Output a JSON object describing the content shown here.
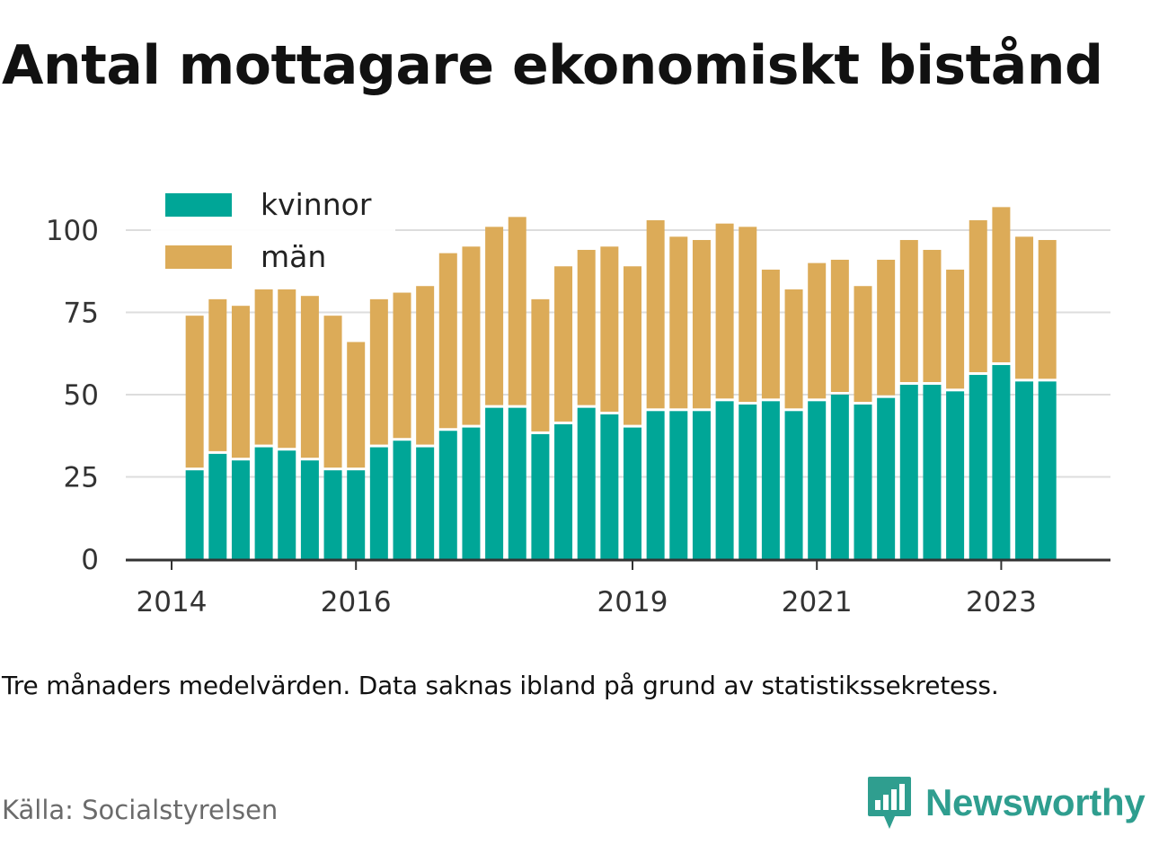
{
  "title": "Antal mottagare ekonomiskt bistånd",
  "note": "Tre månaders medelvärden. Data saknas ibland på grund av statistikssekretess.",
  "source": "Källa: Socialstyrelsen",
  "brand": {
    "name": "Newsworthy",
    "icon": "newsworthy-chart-bubble-icon",
    "color": "#2f9e8f"
  },
  "colors": {
    "kvinnor": "#00a697",
    "man": "#dcab58",
    "grid": "#dddddd",
    "axis": "#333333"
  },
  "chart_data": {
    "type": "bar",
    "stacked": true,
    "grid": true,
    "legend_position": "top-left",
    "ylim": [
      0,
      110
    ],
    "y_ticks": [
      0,
      25,
      50,
      75,
      100
    ],
    "xlim": [
      2014.0,
      2024.0
    ],
    "x_ticks": [
      {
        "label": "2014",
        "year": 2014.0
      },
      {
        "label": "2016",
        "year": 2016.0
      },
      {
        "label": "2019",
        "year": 2019.0
      },
      {
        "label": "2021",
        "year": 2021.0
      },
      {
        "label": "2023",
        "year": 2023.0
      }
    ],
    "x_periods": [
      2014.25,
      2014.5,
      2014.75,
      2015.0,
      2015.25,
      2015.5,
      2015.75,
      2016.0,
      2016.25,
      2016.5,
      2016.75,
      2017.0,
      2017.25,
      2017.5,
      2017.75,
      2018.0,
      2018.25,
      2018.5,
      2018.75,
      2019.0,
      2019.25,
      2019.5,
      2019.75,
      2020.0,
      2020.25,
      2020.5,
      2020.75,
      2021.0,
      2021.25,
      2021.5,
      2021.75,
      2022.0,
      2022.25,
      2022.5,
      2022.75,
      2023.0,
      2023.25,
      2023.5
    ],
    "series": [
      {
        "name": "kvinnor",
        "values": [
          27,
          32,
          30,
          34,
          33,
          30,
          27,
          27,
          34,
          36,
          34,
          39,
          40,
          46,
          46,
          38,
          41,
          46,
          44,
          40,
          45,
          45,
          45,
          48,
          47,
          48,
          45,
          48,
          50,
          47,
          49,
          53,
          53,
          51,
          56,
          59,
          54,
          54
        ]
      },
      {
        "name": "män",
        "values": [
          47,
          47,
          47,
          48,
          49,
          50,
          47,
          39,
          45,
          45,
          49,
          54,
          55,
          55,
          58,
          41,
          48,
          48,
          51,
          49,
          58,
          53,
          52,
          54,
          54,
          40,
          37,
          42,
          41,
          36,
          42,
          44,
          41,
          37,
          47,
          48,
          44,
          43
        ]
      }
    ]
  }
}
